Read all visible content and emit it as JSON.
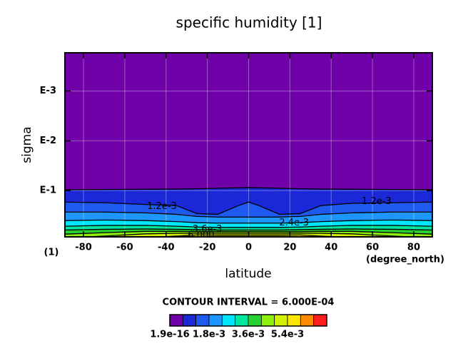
{
  "chart_data": {
    "type": "contour",
    "title": "specific humidity [1]",
    "x_label": "latitude",
    "y_label": "sigma",
    "x_unit": "(degree_north)",
    "y_unit": "(1)",
    "note": "CONTOUR INTERVAL = 6.000E-04",
    "xlim": [
      -89,
      89
    ],
    "xticks": [
      -80,
      -60,
      -40,
      -20,
      0,
      20,
      40,
      60,
      80
    ],
    "ylim": [
      0.85,
      0.00017
    ],
    "log_y": true,
    "yticks": [
      {
        "value": 0.1,
        "label": "E-1"
      },
      {
        "value": 0.01,
        "label": "E-2"
      },
      {
        "value": 0.001,
        "label": "E-3"
      }
    ],
    "grid": true,
    "x": [
      -89,
      -70,
      -50,
      -35,
      -25,
      -15,
      -5,
      0,
      5,
      15,
      25,
      35,
      50,
      70,
      89
    ],
    "contours": [
      {
        "level": 0.0006,
        "values": [
          0.096,
          0.095,
          0.094,
          0.093,
          0.092,
          0.09,
          0.088,
          0.087,
          0.088,
          0.09,
          0.092,
          0.093,
          0.094,
          0.095,
          0.096
        ]
      },
      {
        "level": 0.0012,
        "values": [
          0.17,
          0.175,
          0.19,
          0.2,
          0.29,
          0.3,
          0.2,
          0.17,
          0.2,
          0.3,
          0.29,
          0.2,
          0.18,
          0.175,
          0.17
        ]
      },
      {
        "level": 0.0018,
        "values": [
          0.27,
          0.27,
          0.28,
          0.3,
          0.33,
          0.34,
          0.34,
          0.34,
          0.34,
          0.34,
          0.33,
          0.3,
          0.28,
          0.27,
          0.27
        ]
      },
      {
        "level": 0.0024,
        "values": [
          0.4,
          0.39,
          0.4,
          0.42,
          0.44,
          0.45,
          0.45,
          0.45,
          0.45,
          0.45,
          0.44,
          0.42,
          0.4,
          0.39,
          0.4
        ]
      },
      {
        "level": 0.003,
        "values": [
          0.52,
          0.5,
          0.5,
          0.52,
          0.54,
          0.55,
          0.55,
          0.55,
          0.55,
          0.55,
          0.54,
          0.52,
          0.5,
          0.5,
          0.52
        ]
      },
      {
        "level": 0.0036,
        "values": [
          0.62,
          0.6,
          0.59,
          0.6,
          0.61,
          0.62,
          0.62,
          0.62,
          0.62,
          0.62,
          0.61,
          0.6,
          0.59,
          0.6,
          0.62
        ]
      },
      {
        "level": 0.0042,
        "values": [
          0.75,
          0.7,
          0.66,
          0.66,
          0.67,
          0.67,
          0.67,
          0.67,
          0.67,
          0.67,
          0.67,
          0.66,
          0.66,
          0.7,
          0.75
        ]
      },
      {
        "level": 0.0048,
        "values": [
          0.9,
          0.82,
          0.74,
          0.72,
          0.72,
          0.72,
          0.72,
          0.72,
          0.72,
          0.72,
          0.72,
          0.72,
          0.74,
          0.82,
          0.9
        ]
      },
      {
        "level": 0.0054,
        "values": [
          0.95,
          0.92,
          0.88,
          0.82,
          0.78,
          0.78,
          0.78,
          0.78,
          0.78,
          0.78,
          0.78,
          0.82,
          0.88,
          0.92,
          0.95
        ]
      },
      {
        "level": 0.006,
        "values": [
          0.98,
          0.97,
          0.95,
          0.9,
          0.84,
          0.83,
          0.83,
          0.83,
          0.83,
          0.83,
          0.84,
          0.9,
          0.95,
          0.97,
          0.98
        ]
      }
    ],
    "contour_labels": [
      {
        "text": "1.2e-3",
        "x": -42,
        "y": 0.21
      },
      {
        "text": "1.2e-3",
        "x": 62,
        "y": 0.165
      },
      {
        "text": "2.4e-3",
        "x": 22,
        "y": 0.45
      },
      {
        "text": "3.6e-3",
        "x": -20,
        "y": 0.6
      },
      {
        "text": "6.000",
        "x": -23,
        "y": 0.8
      }
    ],
    "colorbar": {
      "clim": [
        0,
        0.0072
      ],
      "colors": [
        "#7000a8",
        "#1a28d8",
        "#1e5af0",
        "#1e96ff",
        "#00e6ff",
        "#00e6a0",
        "#28d232",
        "#8cf00a",
        "#d2f000",
        "#ffe600",
        "#ff8c00",
        "#ff1e1e"
      ],
      "ticks": [
        {
          "value": 1.9e-16,
          "label": "1.9e-16"
        },
        {
          "value": 0.0018,
          "label": "1.8e-3"
        },
        {
          "value": 0.0036,
          "label": "3.6e-3"
        },
        {
          "value": 0.0054,
          "label": "5.4e-3"
        }
      ]
    }
  }
}
